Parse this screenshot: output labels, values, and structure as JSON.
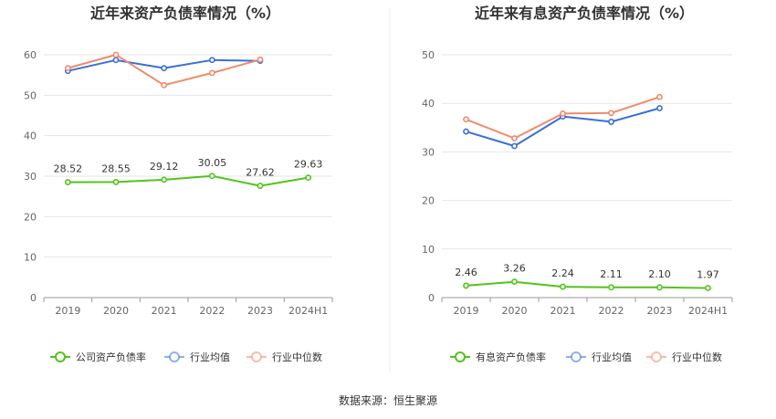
{
  "colors": {
    "company": "#52c41a",
    "avg": "#3a6fd8",
    "median": "#f08a6a",
    "grid": "#e6e6e6",
    "axis": "#999999",
    "divider": "#eeeeee"
  },
  "source": "数据来源：恒生聚源",
  "chart_data": [
    {
      "type": "line",
      "title": "近年来资产负债率情况（%）",
      "categories": [
        "2019",
        "2020",
        "2021",
        "2022",
        "2023",
        "2024H1"
      ],
      "ylim": [
        0,
        60
      ],
      "yticks": [
        0,
        10,
        20,
        30,
        40,
        50,
        60
      ],
      "grid": true,
      "legend_position": "bottom",
      "series": [
        {
          "name": "公司资产负债率",
          "color": "#52c41a",
          "values": [
            28.52,
            28.55,
            29.12,
            30.05,
            27.62,
            29.63
          ],
          "labels": [
            "28.52",
            "28.55",
            "29.12",
            "30.05",
            "27.62",
            "29.63"
          ]
        },
        {
          "name": "行业均值",
          "color": "#3a6fd8",
          "values": [
            56.0,
            58.7,
            56.7,
            58.7,
            58.5,
            null
          ]
        },
        {
          "name": "行业中位数",
          "color": "#f08a6a",
          "values": [
            56.7,
            60.0,
            52.5,
            55.5,
            58.8,
            null
          ]
        }
      ]
    },
    {
      "type": "line",
      "title": "近年来有息资产负债率情况（%）",
      "categories": [
        "2019",
        "2020",
        "2021",
        "2022",
        "2023",
        "2024H1"
      ],
      "ylim": [
        0,
        50
      ],
      "yticks": [
        0,
        10,
        20,
        30,
        40,
        50
      ],
      "grid": true,
      "legend_position": "bottom",
      "series": [
        {
          "name": "有息资产负债率",
          "color": "#52c41a",
          "values": [
            2.46,
            3.26,
            2.24,
            2.11,
            2.1,
            1.97
          ],
          "labels": [
            "2.46",
            "3.26",
            "2.24",
            "2.11",
            "2.10",
            "1.97"
          ]
        },
        {
          "name": "行业均值",
          "color": "#3a6fd8",
          "values": [
            34.2,
            31.2,
            37.3,
            36.2,
            39.0,
            null
          ]
        },
        {
          "name": "行业中位数",
          "color": "#f08a6a",
          "values": [
            36.7,
            32.8,
            37.9,
            38.0,
            41.3,
            null
          ]
        }
      ]
    }
  ]
}
